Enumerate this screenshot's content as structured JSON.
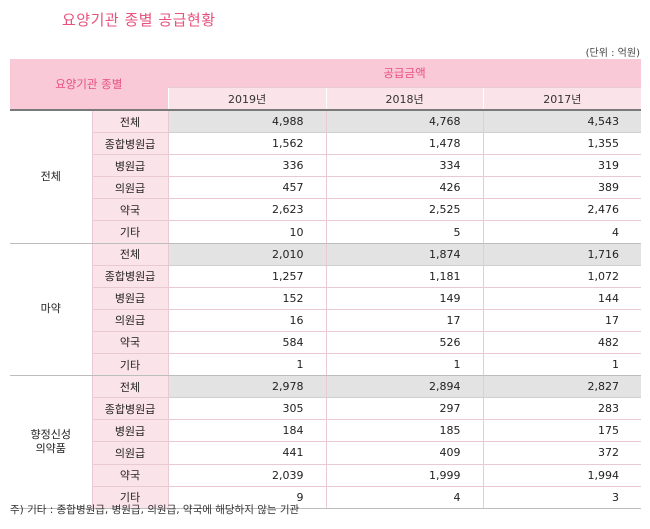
{
  "title": "요양기관 종별 공급현황",
  "unit": "(단위 : 억원)",
  "header": {
    "group_col": "요양기관 종별",
    "amount": "공급금액",
    "years": [
      "2019년",
      "2018년",
      "2017년"
    ]
  },
  "groups": [
    {
      "name": "전체",
      "rows": [
        {
          "cat": "전체",
          "v": [
            "4,988",
            "4,768",
            "4,543"
          ]
        },
        {
          "cat": "종합병원급",
          "v": [
            "1,562",
            "1,478",
            "1,355"
          ]
        },
        {
          "cat": "병원급",
          "v": [
            "336",
            "334",
            "319"
          ]
        },
        {
          "cat": "의원급",
          "v": [
            "457",
            "426",
            "389"
          ]
        },
        {
          "cat": "약국",
          "v": [
            "2,623",
            "2,525",
            "2,476"
          ]
        },
        {
          "cat": "기타",
          "v": [
            "10",
            "5",
            "4"
          ]
        }
      ]
    },
    {
      "name": "마약",
      "rows": [
        {
          "cat": "전체",
          "v": [
            "2,010",
            "1,874",
            "1,716"
          ]
        },
        {
          "cat": "종합병원급",
          "v": [
            "1,257",
            "1,181",
            "1,072"
          ]
        },
        {
          "cat": "병원급",
          "v": [
            "152",
            "149",
            "144"
          ]
        },
        {
          "cat": "의원급",
          "v": [
            "16",
            "17",
            "17"
          ]
        },
        {
          "cat": "약국",
          "v": [
            "584",
            "526",
            "482"
          ]
        },
        {
          "cat": "기타",
          "v": [
            "1",
            "1",
            "1"
          ]
        }
      ]
    },
    {
      "name": "향정신성 의약품",
      "name_lines": [
        "향정신성",
        "의약품"
      ],
      "rows": [
        {
          "cat": "전체",
          "v": [
            "2,978",
            "2,894",
            "2,827"
          ]
        },
        {
          "cat": "종합병원급",
          "v": [
            "305",
            "297",
            "283"
          ]
        },
        {
          "cat": "병원급",
          "v": [
            "184",
            "185",
            "175"
          ]
        },
        {
          "cat": "의원급",
          "v": [
            "441",
            "409",
            "372"
          ]
        },
        {
          "cat": "약국",
          "v": [
            "2,039",
            "1,999",
            "1,994"
          ]
        },
        {
          "cat": "기타",
          "v": [
            "9",
            "4",
            "3"
          ]
        }
      ]
    }
  ],
  "note": "주) 기타 : 종합병원급, 병원급, 의원급, 약국에 해당하지 않는 기관"
}
